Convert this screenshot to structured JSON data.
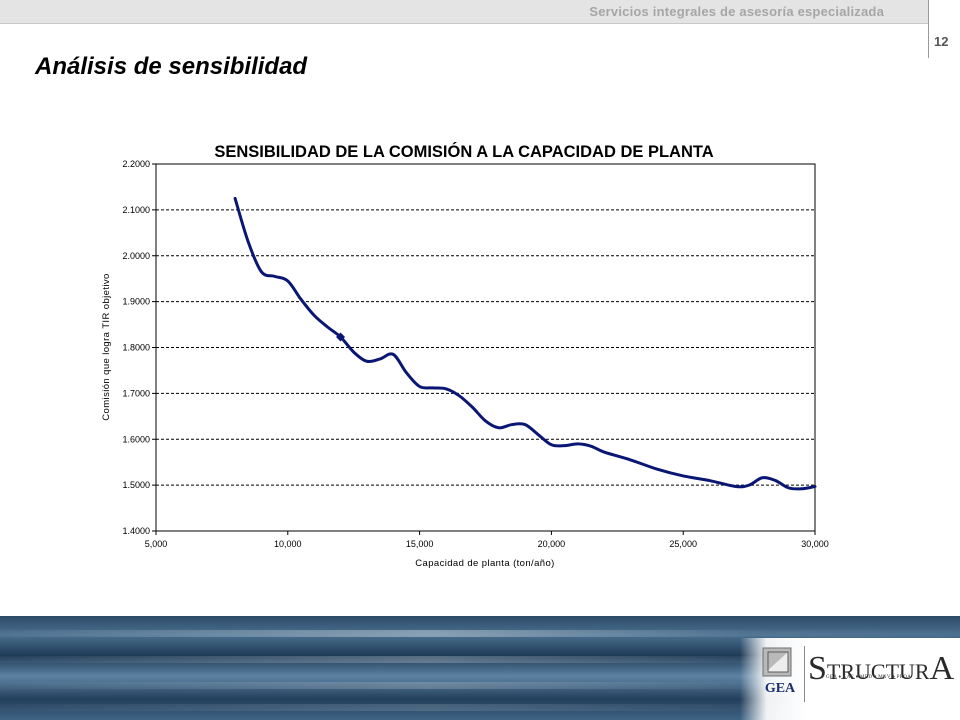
{
  "header": {
    "tagline": "Servicios integrales de asesoría especializada",
    "page_number": "12"
  },
  "slide": {
    "title": "Análisis de sensibilidad"
  },
  "logo": {
    "gea_label": "GEA",
    "brand_s": "S",
    "brand_mid": "TRUCTUR",
    "brand_a": "A",
    "brand_subtitle": "GEA ♦ GAE ♦ MBD ♦ MXV ♦ PROA",
    "brand_color": "#1b2f6b"
  },
  "colors": {
    "series_line": "#0a1673",
    "grid": "#000000",
    "footer_blue": "#2c4a66"
  },
  "chart_data": {
    "type": "line",
    "title": "SENSIBILIDAD DE LA COMISIÓN A LA CAPACIDAD DE PLANTA",
    "xlabel": "Capacidad de planta (ton/año)",
    "ylabel": "Comisión que logra TIR objetivo",
    "xlim": [
      5000,
      30000
    ],
    "ylim": [
      1.4,
      2.2
    ],
    "x_ticks": [
      5000,
      10000,
      15000,
      20000,
      25000,
      30000
    ],
    "x_tick_labels": [
      "5,000",
      "10,000",
      "15,000",
      "20,000",
      "25,000",
      "30,000"
    ],
    "y_ticks": [
      1.4,
      1.5,
      1.6,
      1.7,
      1.8,
      1.9,
      2.0,
      2.1,
      2.2
    ],
    "y_tick_labels": [
      "1.4000",
      "1.5000",
      "1.6000",
      "1.7000",
      "1.8000",
      "1.9000",
      "2.0000",
      "2.1000",
      "2.2000"
    ],
    "grid": "horizontal dashed",
    "legend": "none",
    "marker_point": {
      "x": 12000,
      "y": 1.823
    },
    "series": [
      {
        "x": [
          8000,
          8500,
          9000,
          9500,
          10000,
          10500,
          11000,
          11500,
          12000,
          12500,
          13000,
          13500,
          14000,
          14500,
          15000,
          15500,
          16000,
          16500,
          17000,
          17500,
          18000,
          18500,
          19000,
          19500,
          20000,
          20500,
          21000,
          21500,
          22000,
          23000,
          24000,
          25000,
          26000,
          27000,
          27500,
          28000,
          28500,
          29000,
          29500,
          30000
        ],
        "values": [
          2.125,
          2.03,
          1.965,
          1.955,
          1.945,
          1.905,
          1.87,
          1.845,
          1.823,
          1.79,
          1.77,
          1.775,
          1.785,
          1.745,
          1.715,
          1.712,
          1.71,
          1.695,
          1.67,
          1.64,
          1.625,
          1.632,
          1.632,
          1.61,
          1.588,
          1.586,
          1.59,
          1.585,
          1.572,
          1.555,
          1.535,
          1.52,
          1.51,
          1.497,
          1.5,
          1.516,
          1.51,
          1.494,
          1.492,
          1.497
        ]
      }
    ]
  }
}
